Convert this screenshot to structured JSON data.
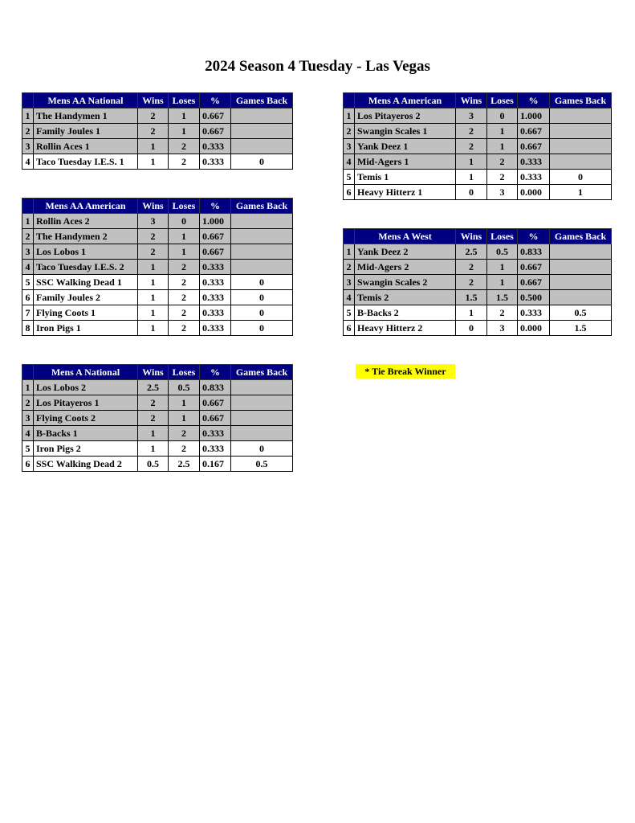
{
  "title": "2024 Season 4 Tuesday - Las Vegas",
  "columns": {
    "wins": "Wins",
    "loses": "Loses",
    "pct": "%",
    "gb": "Games Back"
  },
  "tie_note": "* Tie Break Winner",
  "colors": {
    "header_bg": "#000080",
    "shaded_row": "#c0c0c0",
    "tie_note_bg": "#ffff00"
  },
  "divisions": [
    {
      "name": "Mens AA National",
      "rows": [
        [
          "1",
          "The Handymen 1",
          "2",
          "1",
          "0.667",
          ""
        ],
        [
          "2",
          "Family Joules 1",
          "2",
          "1",
          "0.667",
          ""
        ],
        [
          "3",
          "Rollin Aces 1",
          "1",
          "2",
          "0.333",
          ""
        ],
        [
          "4",
          "Taco Tuesday I.E.S. 1",
          "1",
          "2",
          "0.333",
          "0"
        ]
      ]
    },
    {
      "name": "Mens AA American",
      "rows": [
        [
          "1",
          "Rollin Aces 2",
          "3",
          "0",
          "1.000",
          ""
        ],
        [
          "2",
          "The Handymen 2",
          "2",
          "1",
          "0.667",
          ""
        ],
        [
          "3",
          "Los Lobos 1",
          "2",
          "1",
          "0.667",
          ""
        ],
        [
          "4",
          "Taco Tuesday I.E.S. 2",
          "1",
          "2",
          "0.333",
          ""
        ],
        [
          "5",
          "SSC Walking Dead 1",
          "1",
          "2",
          "0.333",
          "0"
        ],
        [
          "6",
          "Family Joules 2",
          "1",
          "2",
          "0.333",
          "0"
        ],
        [
          "7",
          "Flying Coots 1",
          "1",
          "2",
          "0.333",
          "0"
        ],
        [
          "8",
          "Iron Pigs 1",
          "1",
          "2",
          "0.333",
          "0"
        ]
      ]
    },
    {
      "name": "Mens A National",
      "rows": [
        [
          "1",
          "Los Lobos 2",
          "2.5",
          "0.5",
          "0.833",
          ""
        ],
        [
          "2",
          "Los Pitayeros 1",
          "2",
          "1",
          "0.667",
          ""
        ],
        [
          "3",
          "Flying Coots 2",
          "2",
          "1",
          "0.667",
          ""
        ],
        [
          "4",
          "B-Backs 1",
          "1",
          "2",
          "0.333",
          ""
        ],
        [
          "5",
          "Iron Pigs 2",
          "1",
          "2",
          "0.333",
          "0"
        ],
        [
          "6",
          "SSC Walking Dead 2",
          "0.5",
          "2.5",
          "0.167",
          "0.5"
        ]
      ]
    },
    {
      "name": "Mens A American",
      "rows": [
        [
          "1",
          "Los Pitayeros 2",
          "3",
          "0",
          "1.000",
          ""
        ],
        [
          "2",
          "Swangin Scales 1",
          "2",
          "1",
          "0.667",
          ""
        ],
        [
          "3",
          "Yank Deez 1",
          "2",
          "1",
          "0.667",
          ""
        ],
        [
          "4",
          "Mid-Agers 1",
          "1",
          "2",
          "0.333",
          ""
        ],
        [
          "5",
          "Temis 1",
          "1",
          "2",
          "0.333",
          "0"
        ],
        [
          "6",
          "Heavy Hitterz 1",
          "0",
          "3",
          "0.000",
          "1"
        ]
      ]
    },
    {
      "name": "Mens A West",
      "rows": [
        [
          "1",
          "Yank Deez 2",
          "2.5",
          "0.5",
          "0.833",
          ""
        ],
        [
          "2",
          "Mid-Agers 2",
          "2",
          "1",
          "0.667",
          ""
        ],
        [
          "3",
          "Swangin Scales 2",
          "2",
          "1",
          "0.667",
          ""
        ],
        [
          "4",
          "Temis 2",
          "1.5",
          "1.5",
          "0.500",
          ""
        ],
        [
          "5",
          "B-Backs 2",
          "1",
          "2",
          "0.333",
          "0.5"
        ],
        [
          "6",
          "Heavy Hitterz 2",
          "0",
          "3",
          "0.000",
          "1.5"
        ]
      ]
    }
  ]
}
